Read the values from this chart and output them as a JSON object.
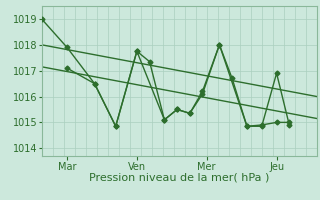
{
  "background_color": "#cce8dc",
  "grid_color": "#aacfbf",
  "line_color": "#2d6e2d",
  "title": "Pression niveau de la mer( hPa )",
  "ylabel_ticks": [
    1014,
    1015,
    1016,
    1017,
    1018,
    1019
  ],
  "ylim": [
    1013.7,
    1019.5
  ],
  "x_tick_labels": [
    "Mar",
    "Ven",
    "Mer",
    "Jeu"
  ],
  "x_tick_positions": [
    12,
    45,
    78,
    111
  ],
  "xlim": [
    0,
    130
  ],
  "series1_x": [
    0,
    12,
    25,
    35,
    45,
    51,
    58,
    64,
    70,
    76,
    84,
    90,
    97,
    104,
    111,
    117
  ],
  "series1_y": [
    1019.0,
    1017.9,
    1016.5,
    1014.85,
    1017.75,
    1017.35,
    1015.1,
    1015.5,
    1015.35,
    1016.1,
    1018.0,
    1016.7,
    1014.85,
    1014.85,
    1016.9,
    1014.9
  ],
  "series2_x": [
    12,
    25,
    35,
    45,
    58,
    64,
    70,
    76,
    84,
    97,
    104,
    111,
    117
  ],
  "series2_y": [
    1017.1,
    1016.5,
    1014.85,
    1017.75,
    1015.1,
    1015.5,
    1015.35,
    1016.2,
    1018.0,
    1014.85,
    1014.9,
    1015.0,
    1015.0
  ],
  "trend1_x": [
    0,
    130
  ],
  "trend1_y": [
    1018.0,
    1016.0
  ],
  "trend2_x": [
    0,
    130
  ],
  "trend2_y": [
    1017.15,
    1015.15
  ],
  "marker": "D",
  "markersize": 2.5,
  "linewidth": 1.0,
  "title_fontsize": 8,
  "tick_fontsize": 7
}
